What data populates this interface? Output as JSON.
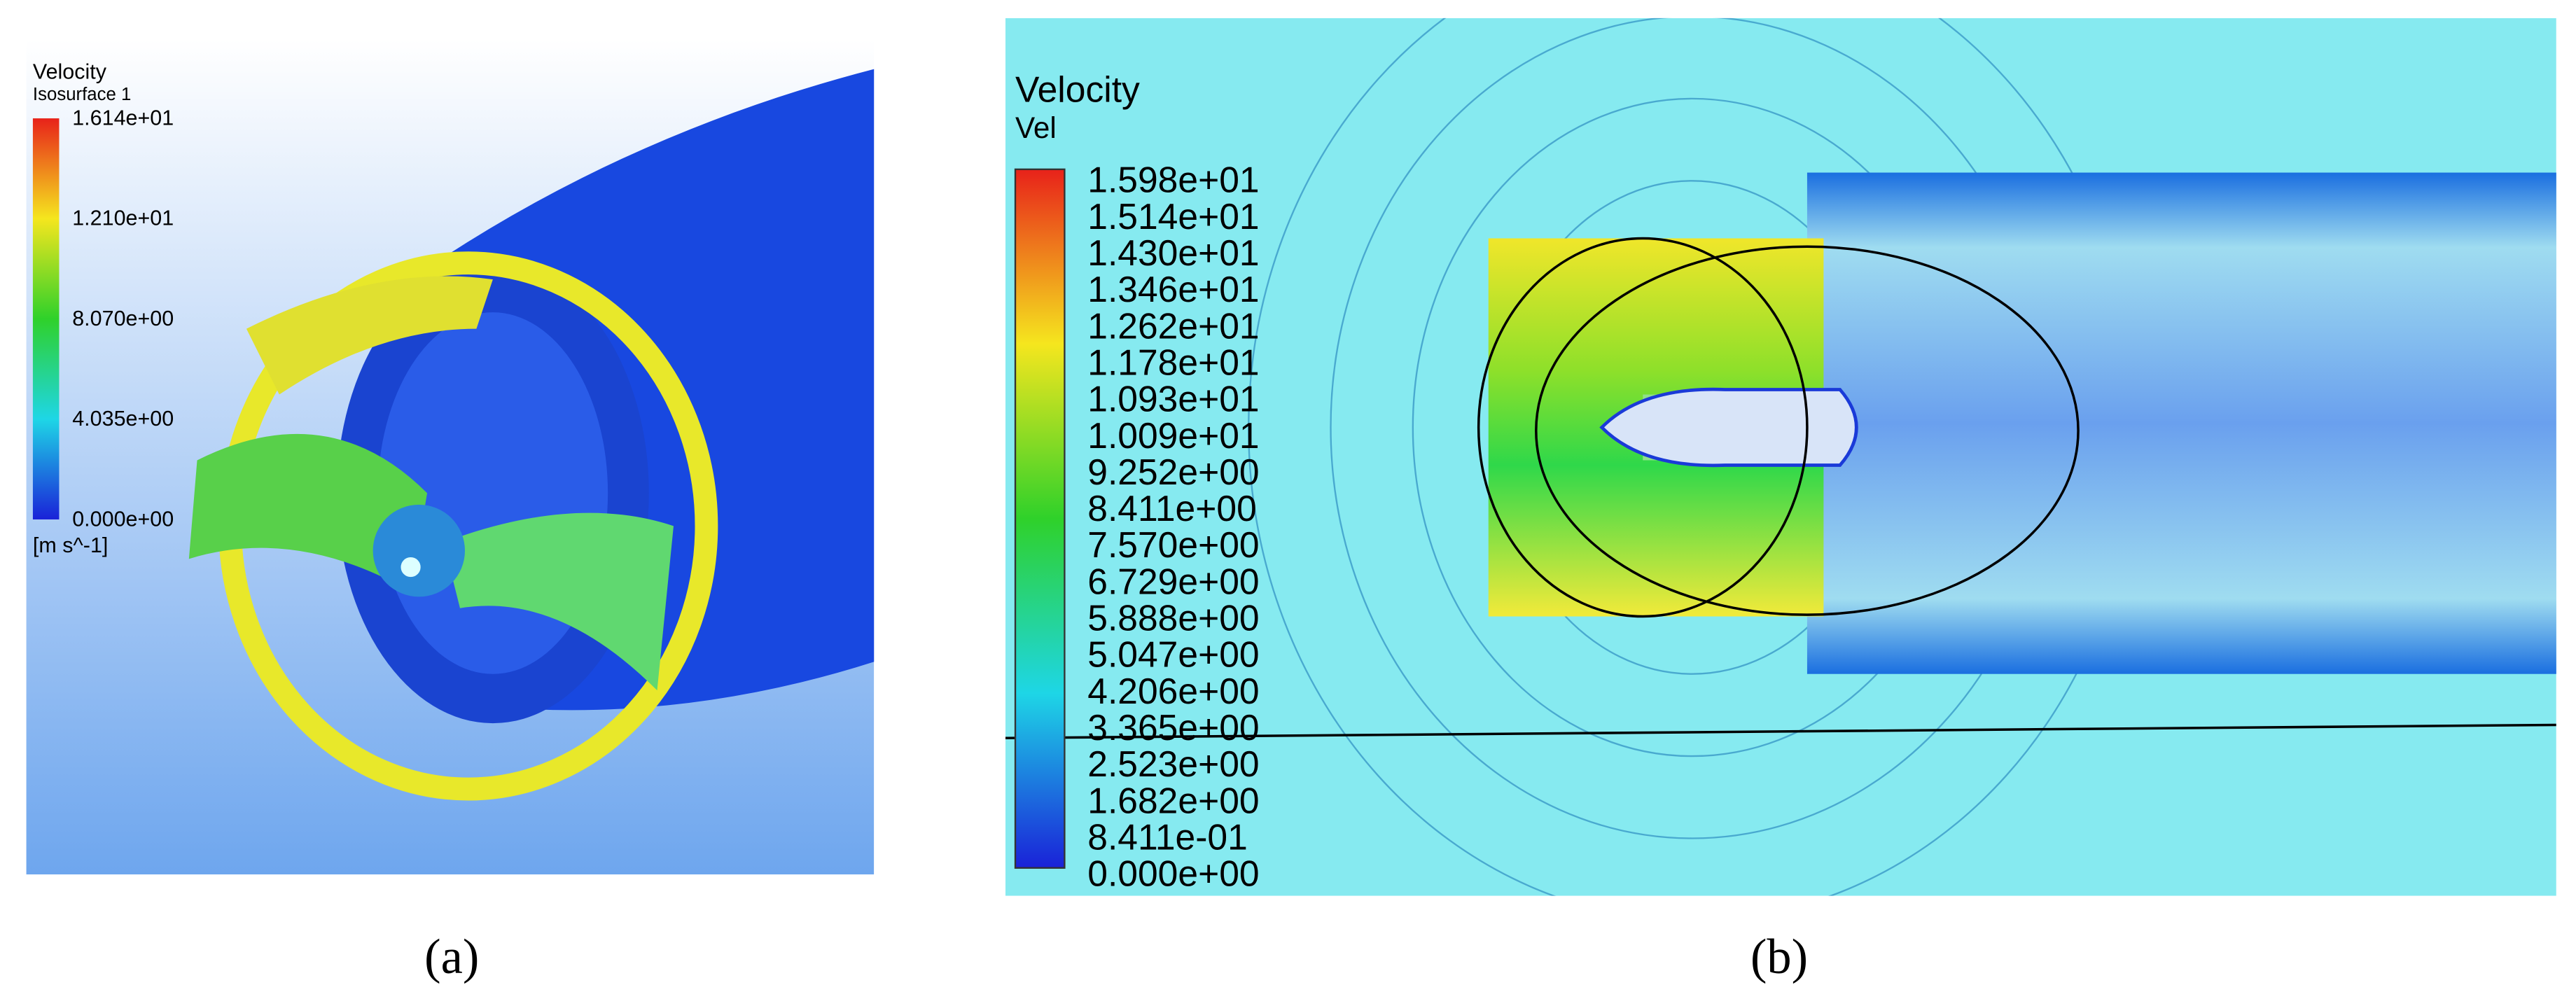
{
  "panel_a": {
    "legend_title": "Velocity",
    "legend_subtitle": "Isosurface 1",
    "legend_labels": [
      "1.614e+01",
      "1.210e+01",
      "8.070e+00",
      "4.035e+00",
      "0.000e+00"
    ],
    "unit": "[m s^-1]",
    "caption": "(a)"
  },
  "panel_b": {
    "legend_title": "Velocity",
    "legend_subtitle": "Vel",
    "legend_labels": [
      "1.598e+01",
      "1.514e+01",
      "1.430e+01",
      "1.346e+01",
      "1.262e+01",
      "1.178e+01",
      "1.093e+01",
      "1.009e+01",
      "9.252e+00",
      "8.411e+00",
      "7.570e+00",
      "6.729e+00",
      "5.888e+00",
      "5.047e+00",
      "4.206e+00",
      "3.365e+00",
      "2.523e+00",
      "1.682e+00",
      "8.411e-01",
      "0.000e+00"
    ],
    "caption": "(b)"
  }
}
